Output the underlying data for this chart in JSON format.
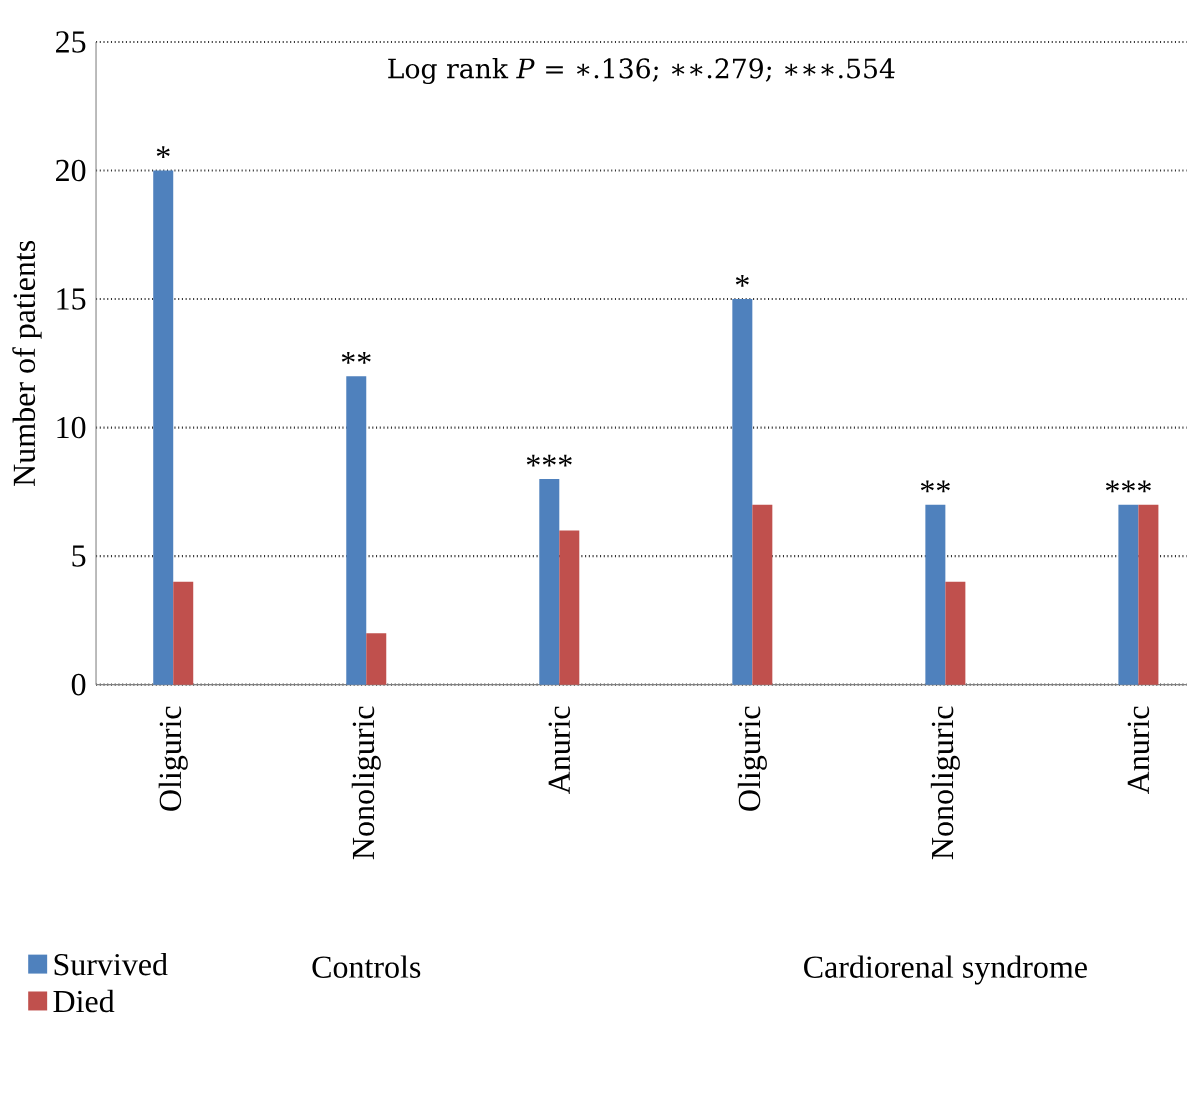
{
  "chart_data": {
    "type": "bar",
    "title": "Log rank *P* = ∗.136; ∗∗.279; ∗∗∗.554",
    "ylabel": "Number of patients",
    "categories": [
      "Oliguric",
      "Nonoliguric",
      "Anuric",
      "Oliguric",
      "Nonoliguric",
      "Anuric"
    ],
    "series": [
      {
        "name": "Survived",
        "color": "#4f81bd",
        "values": [
          20,
          12,
          8,
          15,
          7,
          7
        ],
        "value_labels": [
          "*",
          "**",
          "***",
          "*",
          "**",
          "***"
        ]
      },
      {
        "name": "Died",
        "color": "#c0504d",
        "values": [
          4,
          2,
          6,
          7,
          4,
          7
        ]
      }
    ],
    "annotations": [
      "Controls",
      "Cardiorenal syndrome"
    ],
    "ylim": [
      0,
      25
    ],
    "yticks": [
      0,
      5,
      10,
      15,
      20,
      25
    ],
    "grid": "y",
    "legend": "bottom left"
  }
}
